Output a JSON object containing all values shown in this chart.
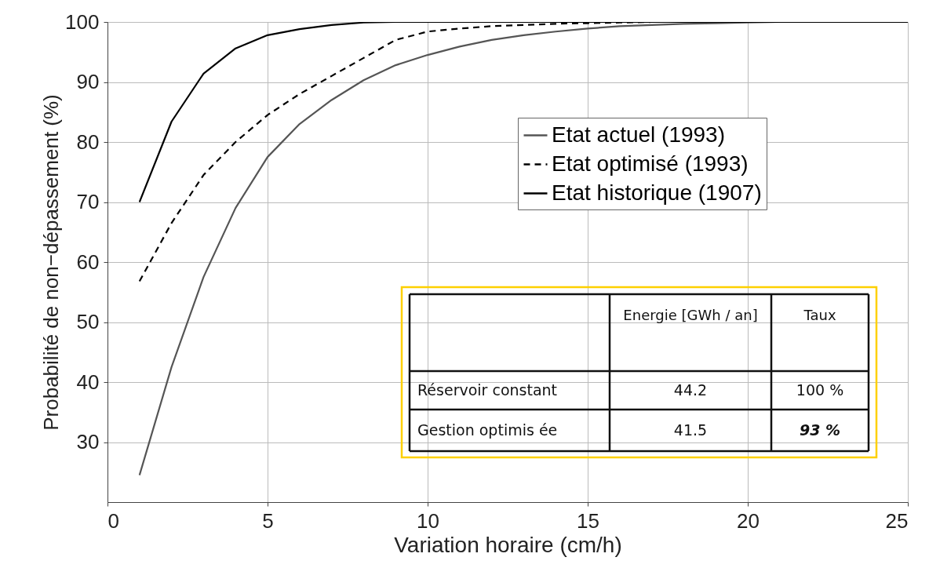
{
  "chart_data": {
    "type": "line",
    "xlabel": "Variation horaire (cm/h)",
    "ylabel": "Probabilité de non−dépassement (%)",
    "x": [
      1,
      2,
      3,
      4,
      5,
      6,
      7,
      8,
      9,
      10,
      11,
      12,
      13,
      14,
      15,
      16,
      17,
      18,
      19,
      20,
      21,
      22,
      23,
      24,
      25
    ],
    "series": [
      {
        "name": "Etat actuel (1993)",
        "color": "#555555",
        "line_style": "solid",
        "values": [
          24.5,
          42.5,
          57.5,
          69,
          77.5,
          83,
          87,
          90.3,
          92.8,
          94.5,
          95.9,
          97,
          97.8,
          98.4,
          98.9,
          99.3,
          99.5,
          99.7,
          99.8,
          99.9,
          100,
          100,
          100,
          100,
          100
        ]
      },
      {
        "name": "Etat optimisé (1993)",
        "color": "#000000",
        "line_style": "dashed",
        "values": [
          56.8,
          66.5,
          74.5,
          80,
          84.5,
          88,
          91,
          94,
          97,
          98.4,
          98.9,
          99.3,
          99.5,
          99.7,
          99.8,
          99.9,
          100,
          100,
          100,
          100,
          100,
          100,
          100,
          100,
          100
        ]
      },
      {
        "name": "Etat historique (1907)",
        "color": "#000000",
        "line_style": "solid",
        "values": [
          70,
          83.4,
          91.4,
          95.6,
          97.8,
          98.8,
          99.5,
          99.9,
          100,
          100,
          100,
          100,
          100,
          100,
          100,
          100,
          100,
          100,
          100,
          100,
          100,
          100,
          100,
          100,
          100
        ]
      }
    ],
    "xlim": [
      0,
      25
    ],
    "xticks": [
      0,
      5,
      10,
      15,
      20,
      25
    ],
    "ylim": [
      20,
      100
    ],
    "yticks": [
      30,
      40,
      50,
      60,
      70,
      80,
      90,
      100
    ],
    "grid": true,
    "legend": "top right",
    "annotations": [
      "Energie [GWh / an]",
      "Taux",
      "Réservoir constant",
      "44.2",
      "100 %",
      "Gestion optimis ée",
      "41.5",
      "93 %"
    ]
  }
}
